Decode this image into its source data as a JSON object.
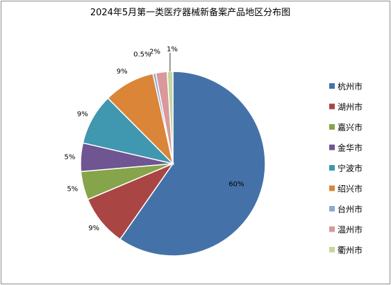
{
  "chart_data": {
    "type": "pie",
    "title": "2024年5月第一类医疗器械新备案产品地区分布图",
    "slices": [
      {
        "name": "杭州市",
        "value": 60,
        "label": "60%",
        "color": "#4472a8"
      },
      {
        "name": "湖州市",
        "value": 9,
        "label": "9%",
        "color": "#a94543"
      },
      {
        "name": "嘉兴市",
        "value": 5,
        "label": "5%",
        "color": "#86a44a"
      },
      {
        "name": "金华市",
        "value": 5,
        "label": "5%",
        "color": "#6f5591"
      },
      {
        "name": "宁波市",
        "value": 9,
        "label": "9%",
        "color": "#3f97b0"
      },
      {
        "name": "绍兴市",
        "value": 9,
        "label": "9%",
        "color": "#db8538"
      },
      {
        "name": "台州市",
        "value": 0.5,
        "label": "0.5%",
        "color": "#8eaad6"
      },
      {
        "name": "温州市",
        "value": 2,
        "label": "2%",
        "color": "#d9999a"
      },
      {
        "name": "衢州市",
        "value": 1,
        "label": "1%",
        "color": "#c4d79e"
      }
    ],
    "legend_position": "right"
  }
}
